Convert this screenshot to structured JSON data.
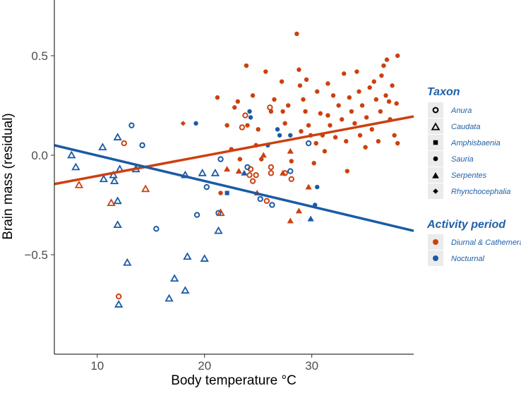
{
  "chart_data": {
    "type": "scatter",
    "xlabel": "Body temperature °C",
    "ylabel": "Brain mass (residual)",
    "xlim": [
      6,
      39.5
    ],
    "ylim": [
      -1.0,
      0.78
    ],
    "xticks": [
      10,
      20,
      30
    ],
    "xtick_labels": [
      "10",
      "20",
      "30"
    ],
    "yticks": [
      -0.5,
      0.0,
      0.5
    ],
    "ytick_labels": [
      "−0.5",
      "0.0",
      "0.5"
    ],
    "grid": false,
    "colors": {
      "diurnal": "#cc4010",
      "nocturnal": "#1a5ba6",
      "text_muted": "#4d4d4d",
      "legend": "#1f5fa8",
      "legend_bg": "#ebebeb"
    },
    "legend": {
      "placement": "right",
      "taxon_title": "Taxon",
      "taxon_entries": [
        {
          "shape": "circle-open",
          "label": "Anura"
        },
        {
          "shape": "triangle-open",
          "label": "Caudata"
        },
        {
          "shape": "square",
          "label": "Amphisbaenia"
        },
        {
          "shape": "circle",
          "label": "Sauria"
        },
        {
          "shape": "triangle",
          "label": "Serpentes"
        },
        {
          "shape": "diamond",
          "label": "Rhynchocephalia"
        }
      ],
      "activity_title": "Activity period",
      "activity_entries": [
        {
          "group": "diurnal",
          "label": "Diurnal & Cathemeral"
        },
        {
          "group": "nocturnal",
          "label": "Nocturnal"
        }
      ]
    },
    "regression_lines": [
      {
        "group": "diurnal",
        "x": [
          6,
          39.5
        ],
        "y": [
          -0.145,
          0.195
        ]
      },
      {
        "group": "nocturnal",
        "x": [
          6,
          39.5
        ],
        "y": [
          0.05,
          -0.38
        ]
      }
    ],
    "points": [
      [
        12.5,
        0.06,
        "circle-open",
        "diurnal"
      ],
      [
        13.2,
        0.15,
        "circle-open",
        "nocturnal"
      ],
      [
        14.2,
        0.05,
        "circle-open",
        "nocturnal"
      ],
      [
        19.3,
        -0.3,
        "circle-open",
        "nocturnal"
      ],
      [
        20.2,
        -0.16,
        "circle-open",
        "nocturnal"
      ],
      [
        21.5,
        -0.02,
        "circle-open",
        "nocturnal"
      ],
      [
        21.3,
        -0.29,
        "circle-open",
        "nocturnal"
      ],
      [
        15.5,
        -0.37,
        "circle-open",
        "nocturnal"
      ],
      [
        12.0,
        -0.71,
        "circle-open",
        "diurnal"
      ],
      [
        23.5,
        0.14,
        "circle-open",
        "diurnal"
      ],
      [
        23.8,
        0.2,
        "circle-open",
        "diurnal"
      ],
      [
        24.2,
        -0.1,
        "circle-open",
        "diurnal"
      ],
      [
        24.3,
        -0.07,
        "circle-open",
        "diurnal"
      ],
      [
        24.5,
        -0.13,
        "circle-open",
        "diurnal"
      ],
      [
        24.8,
        -0.1,
        "circle-open",
        "diurnal"
      ],
      [
        25.2,
        -0.22,
        "circle-open",
        "nocturnal"
      ],
      [
        25.8,
        -0.23,
        "circle-open",
        "diurnal"
      ],
      [
        26.1,
        0.24,
        "circle-open",
        "diurnal"
      ],
      [
        26.2,
        -0.06,
        "circle-open",
        "diurnal"
      ],
      [
        26.2,
        -0.09,
        "circle-open",
        "diurnal"
      ],
      [
        26.3,
        -0.25,
        "circle-open",
        "nocturnal"
      ],
      [
        27.5,
        -0.09,
        "circle-open",
        "diurnal"
      ],
      [
        28.0,
        -0.08,
        "circle-open",
        "nocturnal"
      ],
      [
        28.1,
        -0.12,
        "circle-open",
        "diurnal"
      ],
      [
        29.7,
        0.06,
        "circle-open",
        "nocturnal"
      ],
      [
        24.0,
        -0.06,
        "circle-open",
        "nocturnal"
      ],
      [
        7.6,
        0.0,
        "triangle-open",
        "nocturnal"
      ],
      [
        8.0,
        -0.06,
        "triangle-open",
        "nocturnal"
      ],
      [
        8.3,
        -0.15,
        "triangle-open",
        "diurnal"
      ],
      [
        10.5,
        0.04,
        "triangle-open",
        "nocturnal"
      ],
      [
        10.6,
        -0.12,
        "triangle-open",
        "nocturnal"
      ],
      [
        11.3,
        -0.24,
        "triangle-open",
        "diurnal"
      ],
      [
        11.5,
        -0.1,
        "triangle-open",
        "nocturnal"
      ],
      [
        11.6,
        -0.13,
        "triangle-open",
        "nocturnal"
      ],
      [
        11.9,
        0.09,
        "triangle-open",
        "nocturnal"
      ],
      [
        11.9,
        -0.23,
        "triangle-open",
        "nocturnal"
      ],
      [
        11.9,
        -0.35,
        "triangle-open",
        "nocturnal"
      ],
      [
        12.1,
        -0.07,
        "triangle-open",
        "nocturnal"
      ],
      [
        12.0,
        -0.75,
        "triangle-open",
        "nocturnal"
      ],
      [
        12.8,
        -0.54,
        "triangle-open",
        "nocturnal"
      ],
      [
        13.6,
        -0.07,
        "triangle-open",
        "nocturnal"
      ],
      [
        14.5,
        -0.17,
        "triangle-open",
        "diurnal"
      ],
      [
        16.7,
        -0.72,
        "triangle-open",
        "nocturnal"
      ],
      [
        17.2,
        -0.62,
        "triangle-open",
        "nocturnal"
      ],
      [
        18.2,
        -0.1,
        "triangle-open",
        "nocturnal"
      ],
      [
        18.2,
        -0.68,
        "triangle-open",
        "nocturnal"
      ],
      [
        18.4,
        -0.51,
        "triangle-open",
        "nocturnal"
      ],
      [
        19.8,
        -0.09,
        "triangle-open",
        "nocturnal"
      ],
      [
        20.0,
        -0.52,
        "triangle-open",
        "nocturnal"
      ],
      [
        21.0,
        -0.09,
        "triangle-open",
        "nocturnal"
      ],
      [
        21.3,
        -0.38,
        "triangle-open",
        "nocturnal"
      ],
      [
        21.5,
        -0.29,
        "triangle-open",
        "diurnal"
      ],
      [
        22.1,
        -0.19,
        "square",
        "nocturnal"
      ],
      [
        18.0,
        0.16,
        "diamond",
        "diurnal"
      ],
      [
        22.1,
        -0.07,
        "triangle",
        "diurnal"
      ],
      [
        23.2,
        -0.08,
        "triangle",
        "diurnal"
      ],
      [
        23.7,
        -0.09,
        "triangle",
        "nocturnal"
      ],
      [
        25.5,
        0.0,
        "triangle",
        "diurnal"
      ],
      [
        27.3,
        -0.09,
        "triangle",
        "diurnal"
      ],
      [
        28.0,
        -0.33,
        "triangle",
        "diurnal"
      ],
      [
        28.8,
        -0.28,
        "triangle",
        "diurnal"
      ],
      [
        29.7,
        -0.16,
        "triangle",
        "diurnal"
      ],
      [
        29.9,
        -0.32,
        "triangle",
        "nocturnal"
      ],
      [
        24.9,
        -0.19,
        "triangle",
        "diurnal"
      ],
      [
        28.0,
        0.02,
        "triangle",
        "diurnal"
      ],
      [
        19.2,
        0.16,
        "circle",
        "nocturnal"
      ],
      [
        21.2,
        0.29,
        "circle",
        "diurnal"
      ],
      [
        21.5,
        -0.19,
        "circle",
        "diurnal"
      ],
      [
        22.1,
        0.15,
        "circle",
        "diurnal"
      ],
      [
        22.5,
        0.03,
        "circle",
        "diurnal"
      ],
      [
        22.8,
        0.24,
        "circle",
        "diurnal"
      ],
      [
        23.1,
        0.27,
        "circle",
        "diurnal"
      ],
      [
        23.3,
        -0.02,
        "circle",
        "diurnal"
      ],
      [
        23.9,
        0.45,
        "circle",
        "diurnal"
      ],
      [
        24.0,
        0.15,
        "circle",
        "diurnal"
      ],
      [
        24.2,
        0.22,
        "circle",
        "nocturnal"
      ],
      [
        24.3,
        0.19,
        "circle",
        "nocturnal"
      ],
      [
        24.5,
        0.3,
        "circle",
        "diurnal"
      ],
      [
        24.8,
        0.05,
        "circle",
        "diurnal"
      ],
      [
        25.0,
        0.13,
        "circle",
        "diurnal"
      ],
      [
        25.3,
        -0.02,
        "circle",
        "diurnal"
      ],
      [
        25.7,
        0.42,
        "circle",
        "diurnal"
      ],
      [
        25.9,
        0.05,
        "circle",
        "nocturnal"
      ],
      [
        26.2,
        0.22,
        "circle",
        "diurnal"
      ],
      [
        26.5,
        0.28,
        "circle",
        "diurnal"
      ],
      [
        26.8,
        0.13,
        "circle",
        "nocturnal"
      ],
      [
        27.0,
        0.1,
        "circle",
        "nocturnal"
      ],
      [
        27.2,
        0.37,
        "circle",
        "diurnal"
      ],
      [
        27.3,
        0.22,
        "circle",
        "diurnal"
      ],
      [
        27.5,
        0.16,
        "circle",
        "diurnal"
      ],
      [
        27.8,
        0.25,
        "circle",
        "diurnal"
      ],
      [
        28.0,
        0.1,
        "circle",
        "nocturnal"
      ],
      [
        28.1,
        -0.03,
        "circle",
        "diurnal"
      ],
      [
        28.6,
        0.61,
        "circle",
        "diurnal"
      ],
      [
        28.8,
        0.43,
        "circle",
        "diurnal"
      ],
      [
        28.9,
        0.35,
        "circle",
        "diurnal"
      ],
      [
        29.0,
        0.12,
        "circle",
        "diurnal"
      ],
      [
        29.2,
        0.28,
        "circle",
        "diurnal"
      ],
      [
        29.4,
        0.22,
        "circle",
        "diurnal"
      ],
      [
        29.5,
        0.38,
        "circle",
        "diurnal"
      ],
      [
        29.7,
        0.15,
        "circle",
        "diurnal"
      ],
      [
        29.9,
        0.1,
        "circle",
        "diurnal"
      ],
      [
        30.2,
        -0.04,
        "circle",
        "diurnal"
      ],
      [
        30.4,
        0.06,
        "circle",
        "diurnal"
      ],
      [
        30.5,
        0.32,
        "circle",
        "diurnal"
      ],
      [
        30.8,
        0.21,
        "circle",
        "diurnal"
      ],
      [
        31.0,
        0.1,
        "circle",
        "diurnal"
      ],
      [
        31.2,
        0.02,
        "circle",
        "diurnal"
      ],
      [
        31.5,
        0.36,
        "circle",
        "diurnal"
      ],
      [
        31.5,
        0.2,
        "circle",
        "diurnal"
      ],
      [
        31.7,
        0.15,
        "circle",
        "diurnal"
      ],
      [
        32.0,
        0.3,
        "circle",
        "diurnal"
      ],
      [
        32.2,
        0.09,
        "circle",
        "diurnal"
      ],
      [
        32.5,
        0.25,
        "circle",
        "diurnal"
      ],
      [
        32.8,
        0.18,
        "circle",
        "diurnal"
      ],
      [
        33.0,
        0.41,
        "circle",
        "diurnal"
      ],
      [
        33.2,
        0.07,
        "circle",
        "diurnal"
      ],
      [
        33.3,
        -0.08,
        "circle",
        "diurnal"
      ],
      [
        33.5,
        0.29,
        "circle",
        "diurnal"
      ],
      [
        33.7,
        0.22,
        "circle",
        "diurnal"
      ],
      [
        34.0,
        0.16,
        "circle",
        "diurnal"
      ],
      [
        34.2,
        0.42,
        "circle",
        "diurnal"
      ],
      [
        34.4,
        0.32,
        "circle",
        "diurnal"
      ],
      [
        34.5,
        0.1,
        "circle",
        "diurnal"
      ],
      [
        34.7,
        0.25,
        "circle",
        "diurnal"
      ],
      [
        35.0,
        0.04,
        "circle",
        "diurnal"
      ],
      [
        35.1,
        0.19,
        "circle",
        "diurnal"
      ],
      [
        35.4,
        0.34,
        "circle",
        "diurnal"
      ],
      [
        35.6,
        0.13,
        "circle",
        "diurnal"
      ],
      [
        35.8,
        0.37,
        "circle",
        "diurnal"
      ],
      [
        36.0,
        0.28,
        "circle",
        "diurnal"
      ],
      [
        36.2,
        0.07,
        "circle",
        "diurnal"
      ],
      [
        36.4,
        0.22,
        "circle",
        "diurnal"
      ],
      [
        36.5,
        0.4,
        "circle",
        "diurnal"
      ],
      [
        36.7,
        0.45,
        "circle",
        "diurnal"
      ],
      [
        36.9,
        0.3,
        "circle",
        "diurnal"
      ],
      [
        37.0,
        0.48,
        "circle",
        "diurnal"
      ],
      [
        37.2,
        0.27,
        "circle",
        "diurnal"
      ],
      [
        37.3,
        0.18,
        "circle",
        "diurnal"
      ],
      [
        37.5,
        0.35,
        "circle",
        "diurnal"
      ],
      [
        37.7,
        0.1,
        "circle",
        "diurnal"
      ],
      [
        37.9,
        0.26,
        "circle",
        "diurnal"
      ],
      [
        38.0,
        0.5,
        "circle",
        "diurnal"
      ],
      [
        38.0,
        0.06,
        "circle",
        "diurnal"
      ],
      [
        30.5,
        -0.16,
        "circle",
        "nocturnal"
      ],
      [
        30.3,
        -0.25,
        "circle",
        "nocturnal"
      ]
    ]
  }
}
